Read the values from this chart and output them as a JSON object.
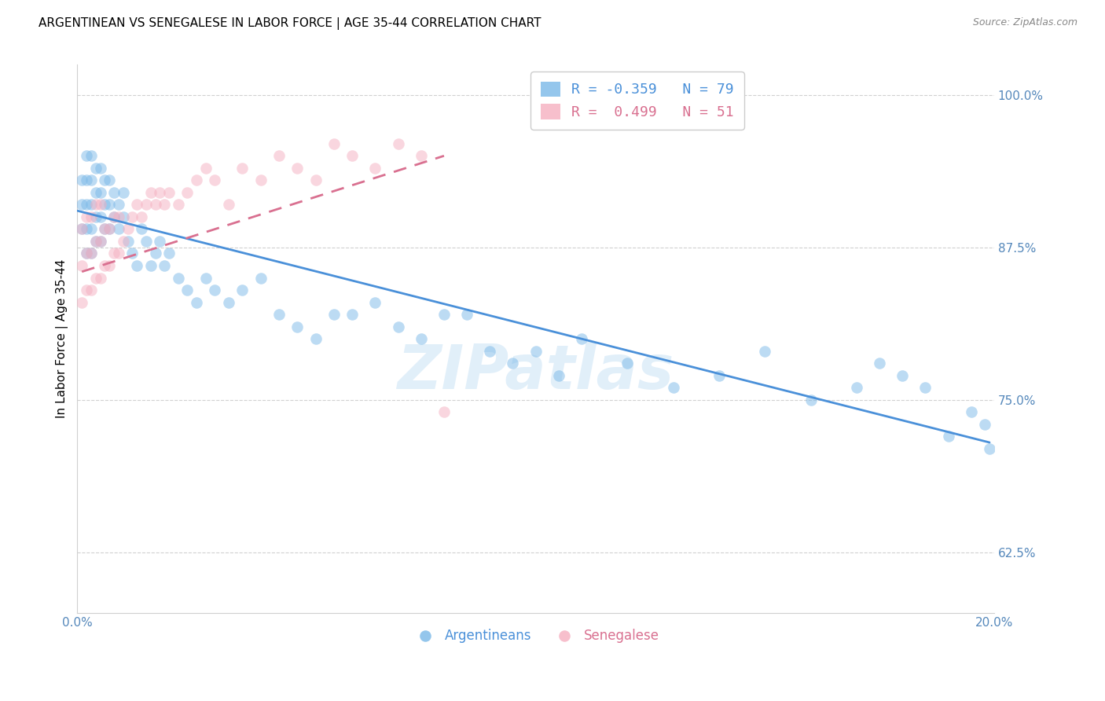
{
  "title": "ARGENTINEAN VS SENEGALESE IN LABOR FORCE | AGE 35-44 CORRELATION CHART",
  "source": "Source: ZipAtlas.com",
  "ylabel": "In Labor Force | Age 35-44",
  "xlim": [
    0.0,
    0.2
  ],
  "ylim": [
    0.575,
    1.025
  ],
  "yticks": [
    0.625,
    0.75,
    0.875,
    1.0
  ],
  "ytick_labels": [
    "62.5%",
    "75.0%",
    "87.5%",
    "100.0%"
  ],
  "xticks": [
    0.0,
    0.05,
    0.1,
    0.15,
    0.2
  ],
  "xtick_labels": [
    "0.0%",
    "",
    "",
    "",
    "20.0%"
  ],
  "blue_scatter_x": [
    0.001,
    0.001,
    0.001,
    0.002,
    0.002,
    0.002,
    0.002,
    0.002,
    0.003,
    0.003,
    0.003,
    0.003,
    0.003,
    0.004,
    0.004,
    0.004,
    0.004,
    0.005,
    0.005,
    0.005,
    0.005,
    0.006,
    0.006,
    0.006,
    0.007,
    0.007,
    0.007,
    0.008,
    0.008,
    0.009,
    0.009,
    0.01,
    0.01,
    0.011,
    0.012,
    0.013,
    0.014,
    0.015,
    0.016,
    0.017,
    0.018,
    0.019,
    0.02,
    0.022,
    0.024,
    0.026,
    0.028,
    0.03,
    0.033,
    0.036,
    0.04,
    0.044,
    0.048,
    0.052,
    0.056,
    0.06,
    0.065,
    0.07,
    0.075,
    0.08,
    0.085,
    0.09,
    0.095,
    0.1,
    0.105,
    0.11,
    0.12,
    0.13,
    0.14,
    0.15,
    0.16,
    0.17,
    0.175,
    0.18,
    0.185,
    0.19,
    0.195,
    0.198,
    0.199
  ],
  "blue_scatter_y": [
    0.89,
    0.91,
    0.93,
    0.87,
    0.89,
    0.91,
    0.93,
    0.95,
    0.87,
    0.89,
    0.91,
    0.93,
    0.95,
    0.88,
    0.9,
    0.92,
    0.94,
    0.88,
    0.9,
    0.92,
    0.94,
    0.89,
    0.91,
    0.93,
    0.89,
    0.91,
    0.93,
    0.9,
    0.92,
    0.89,
    0.91,
    0.9,
    0.92,
    0.88,
    0.87,
    0.86,
    0.89,
    0.88,
    0.86,
    0.87,
    0.88,
    0.86,
    0.87,
    0.85,
    0.84,
    0.83,
    0.85,
    0.84,
    0.83,
    0.84,
    0.85,
    0.82,
    0.81,
    0.8,
    0.82,
    0.82,
    0.83,
    0.81,
    0.8,
    0.82,
    0.82,
    0.79,
    0.78,
    0.79,
    0.77,
    0.8,
    0.78,
    0.76,
    0.77,
    0.79,
    0.75,
    0.76,
    0.78,
    0.77,
    0.76,
    0.72,
    0.74,
    0.73,
    0.71
  ],
  "pink_scatter_x": [
    0.001,
    0.001,
    0.001,
    0.002,
    0.002,
    0.002,
    0.003,
    0.003,
    0.003,
    0.004,
    0.004,
    0.004,
    0.005,
    0.005,
    0.005,
    0.006,
    0.006,
    0.007,
    0.007,
    0.008,
    0.008,
    0.009,
    0.009,
    0.01,
    0.011,
    0.012,
    0.013,
    0.014,
    0.015,
    0.016,
    0.017,
    0.018,
    0.019,
    0.02,
    0.022,
    0.024,
    0.026,
    0.028,
    0.03,
    0.033,
    0.036,
    0.04,
    0.044,
    0.048,
    0.052,
    0.056,
    0.06,
    0.065,
    0.07,
    0.075,
    0.08
  ],
  "pink_scatter_y": [
    0.83,
    0.86,
    0.89,
    0.84,
    0.87,
    0.9,
    0.84,
    0.87,
    0.9,
    0.85,
    0.88,
    0.91,
    0.85,
    0.88,
    0.91,
    0.86,
    0.89,
    0.86,
    0.89,
    0.87,
    0.9,
    0.87,
    0.9,
    0.88,
    0.89,
    0.9,
    0.91,
    0.9,
    0.91,
    0.92,
    0.91,
    0.92,
    0.91,
    0.92,
    0.91,
    0.92,
    0.93,
    0.94,
    0.93,
    0.91,
    0.94,
    0.93,
    0.95,
    0.94,
    0.93,
    0.96,
    0.95,
    0.94,
    0.96,
    0.95,
    0.74
  ],
  "blue_line_x": [
    0.0,
    0.199
  ],
  "blue_line_y": [
    0.905,
    0.715
  ],
  "pink_line_x": [
    0.001,
    0.08
  ],
  "pink_line_y": [
    0.855,
    0.95
  ],
  "watermark": "ZIPatlas",
  "title_fontsize": 11,
  "label_fontsize": 11,
  "tick_fontsize": 11,
  "scatter_size": 110,
  "scatter_alpha": 0.5,
  "line_width": 2.0,
  "blue_color": "#7ab8e8",
  "pink_color": "#f5afc0",
  "blue_line_color": "#4a90d9",
  "pink_line_color": "#d97090",
  "pink_line_dash": [
    6,
    4
  ],
  "axis_color": "#5588bb",
  "grid_color": "#cccccc",
  "background_color": "#ffffff",
  "legend_blue_text": "R = -0.359   N = 79",
  "legend_pink_text": "R =  0.499   N = 51",
  "bottom_legend_labels": [
    "Argentineans",
    "Senegalese"
  ]
}
